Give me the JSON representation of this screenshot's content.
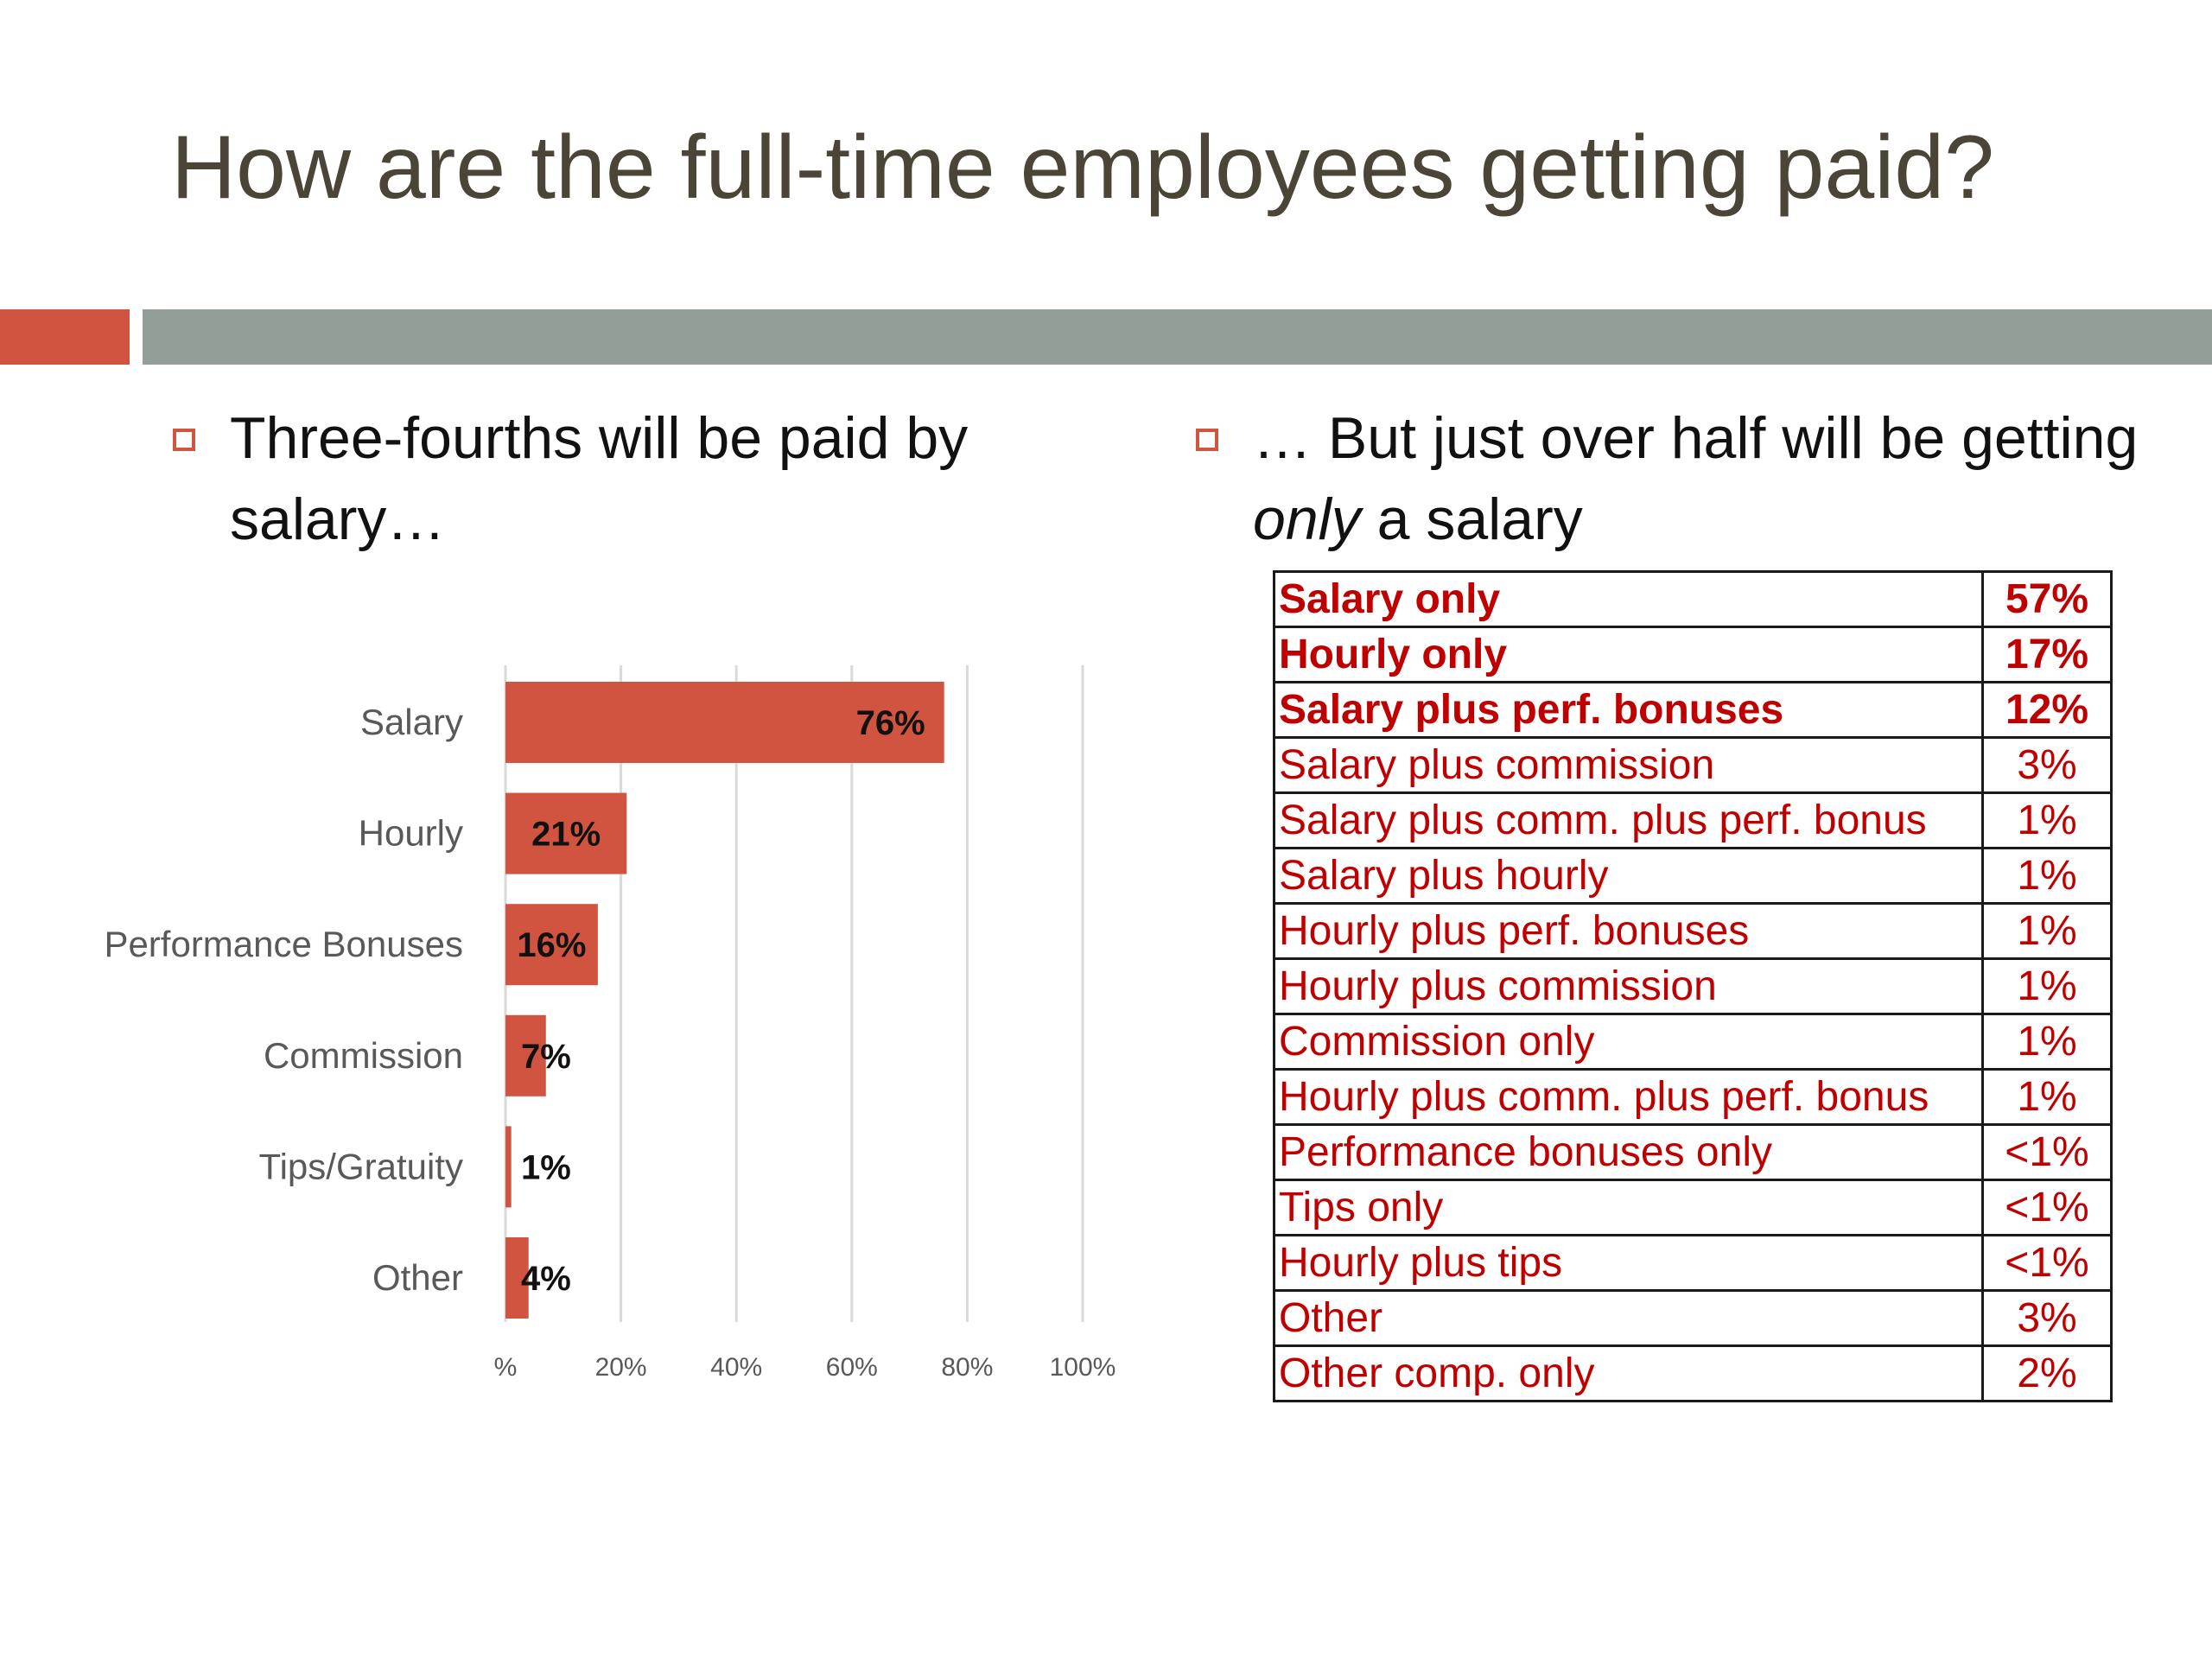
{
  "title": "How are the full-time employees getting paid?",
  "accent_color": "#d05440",
  "divider_color": "#929e97",
  "bullets": {
    "left": "Three-fourths will be paid by salary…",
    "right_before": "… But just  over half will be getting ",
    "right_italic": "only",
    "right_after": " a salary",
    "icon": "square-bullet-icon"
  },
  "chart_data": {
    "type": "bar",
    "orientation": "horizontal",
    "categories": [
      "Salary",
      "Hourly",
      "Performance Bonuses",
      "Commission",
      "Tips/Gratuity",
      "Other"
    ],
    "values": [
      76,
      21,
      16,
      7,
      1,
      4
    ],
    "data_labels": [
      "76%",
      "21%",
      "16%",
      "7%",
      "1%",
      "4%"
    ],
    "xlim": [
      0,
      100
    ],
    "xticks": [
      "%",
      "20%",
      "40%",
      "60%",
      "80%",
      "100%"
    ],
    "grid": true,
    "bar_color": "#d05440"
  },
  "table": {
    "text_color": "#c00000",
    "rows": [
      {
        "label": "Salary only",
        "value": "57%",
        "bold": true
      },
      {
        "label": "Hourly only",
        "value": "17%",
        "bold": true
      },
      {
        "label": "Salary plus perf. bonuses",
        "value": "12%",
        "bold": true
      },
      {
        "label": "Salary plus commission",
        "value": "3%",
        "bold": false
      },
      {
        "label": "Salary plus comm. plus perf. bonus",
        "value": "1%",
        "bold": false
      },
      {
        "label": "Salary plus hourly",
        "value": "1%",
        "bold": false
      },
      {
        "label": "Hourly plus perf. bonuses",
        "value": "1%",
        "bold": false
      },
      {
        "label": "Hourly plus commission",
        "value": "1%",
        "bold": false
      },
      {
        "label": "Commission only",
        "value": "1%",
        "bold": false
      },
      {
        "label": "Hourly plus comm. plus perf. bonus",
        "value": "1%",
        "bold": false
      },
      {
        "label": "Performance bonuses only",
        "value": "<1%",
        "bold": false
      },
      {
        "label": "Tips only",
        "value": "<1%",
        "bold": false
      },
      {
        "label": "Hourly plus tips",
        "value": "<1%",
        "bold": false
      },
      {
        "label": "Other",
        "value": "3%",
        "bold": false
      },
      {
        "label": "Other comp. only",
        "value": "2%",
        "bold": false
      }
    ]
  }
}
